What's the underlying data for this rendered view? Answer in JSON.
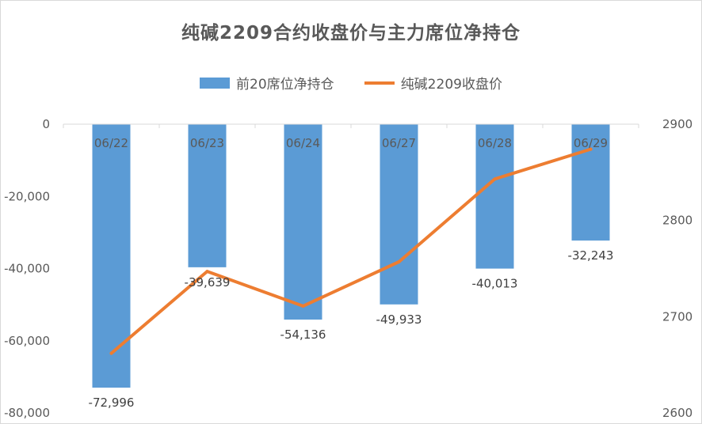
{
  "chart_data": {
    "type": "bar+line",
    "title": "纯碱2209合约收盘价与主力席位净持仓",
    "categories": [
      "06/22",
      "06/23",
      "06/24",
      "06/27",
      "06/28",
      "06/29"
    ],
    "series": [
      {
        "name": "前20席位净持仓",
        "type": "bar",
        "axis": "left",
        "values": [
          -72996,
          -39639,
          -54136,
          -49933,
          -40013,
          -32243
        ],
        "labels": [
          "-72,996",
          "-39,639",
          "-54,136",
          "-49,933",
          "-40,013",
          "-32,243"
        ],
        "color": "#5b9bd5"
      },
      {
        "name": "纯碱2209收盘价",
        "type": "line",
        "axis": "right",
        "values": [
          2662,
          2747,
          2711,
          2757,
          2843,
          2874
        ],
        "color": "#ed7d31"
      }
    ],
    "y_left": {
      "min": -80000,
      "max": 0,
      "ticks": [
        0,
        -20000,
        -40000,
        -60000,
        -80000
      ],
      "tick_labels": [
        "0",
        "-20,000",
        "-40,000",
        "-60,000",
        "-80,000"
      ]
    },
    "y_right": {
      "min": 2600,
      "max": 2900,
      "ticks": [
        2900,
        2800,
        2700,
        2600
      ],
      "tick_labels": [
        "2900",
        "2800",
        "2700",
        "2600"
      ]
    },
    "legend_position": "top",
    "grid": false
  }
}
